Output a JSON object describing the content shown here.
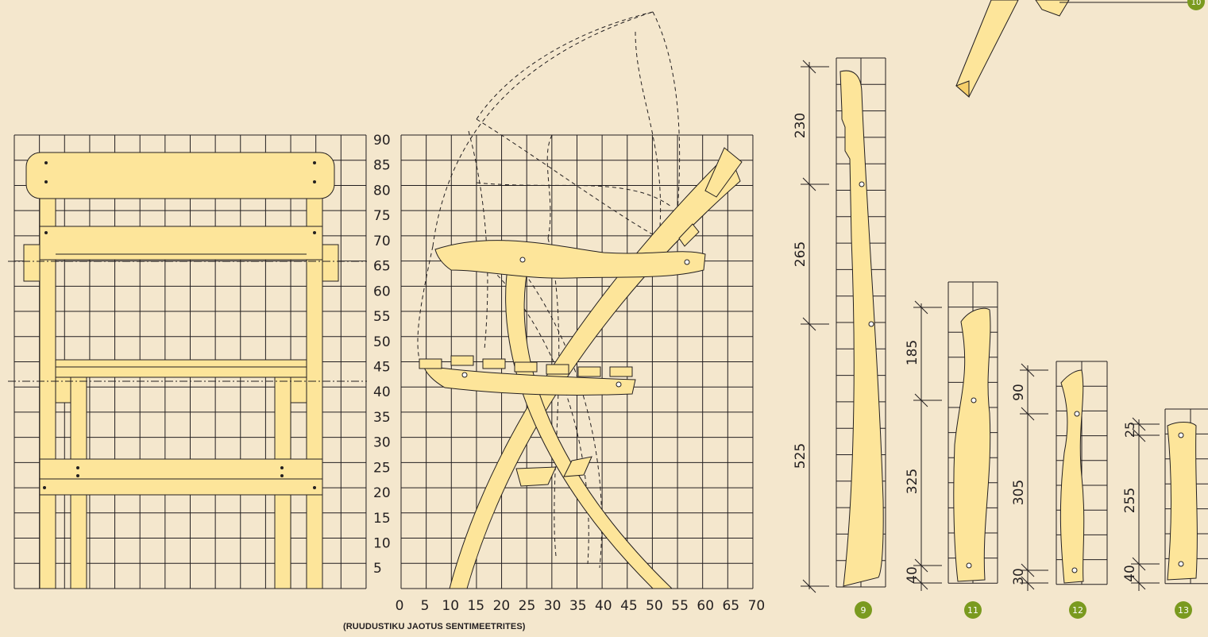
{
  "colors": {
    "background": "#f4e7cd",
    "wood": "#fde59a",
    "wood_dark": "#f6cf6a",
    "line": "#231f20",
    "badge": "#7a9a1f"
  },
  "grid_caption": "(RUUDUSTIKU JAOTUS SENTIMEETRITES)",
  "y_axis_labels": [
    "90",
    "85",
    "80",
    "75",
    "70",
    "65",
    "60",
    "55",
    "50",
    "45",
    "40",
    "35",
    "30",
    "25",
    "20",
    "15",
    "10",
    "5"
  ],
  "x_axis_labels": [
    "0",
    "5",
    "10",
    "15",
    "20",
    "25",
    "30",
    "35",
    "40",
    "45",
    "50",
    "55",
    "60",
    "65",
    "70"
  ],
  "parts": [
    {
      "badge": "9",
      "dimensions": [
        "230",
        "265",
        "525"
      ]
    },
    {
      "badge": "11",
      "dimensions": [
        "185",
        "325",
        "40"
      ]
    },
    {
      "badge": "12",
      "dimensions": [
        "90",
        "305",
        "30"
      ]
    },
    {
      "badge": "13",
      "dimensions": [
        "25",
        "255",
        "40"
      ]
    }
  ],
  "corner_badge": "10"
}
